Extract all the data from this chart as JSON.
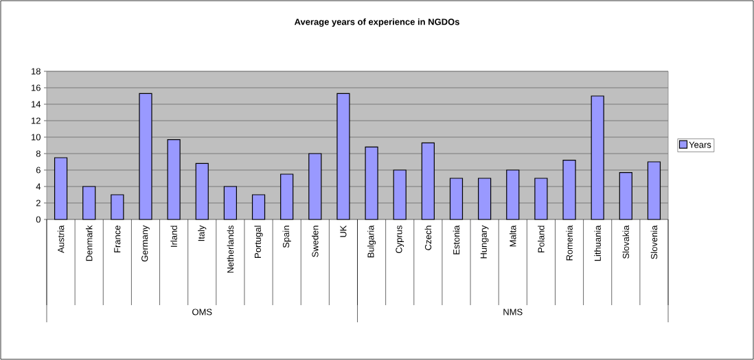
{
  "chart_data": {
    "type": "bar",
    "title": "Average years of experience in NGDOs",
    "categories": [
      "Austria",
      "Denmark",
      "France",
      "Germany",
      "Irland",
      "Italy",
      "Netherlands",
      "Portugal",
      "Spain",
      "Sweden",
      "UK",
      "Bulgaria",
      "Cyprus",
      "Czech",
      "Estonia",
      "Hungary",
      "Malta",
      "Poland",
      "Romenia",
      "Lithuania",
      "Slovakia",
      "Slovenia"
    ],
    "series": [
      {
        "name": "Years",
        "color": "#9999ff",
        "values": [
          7.5,
          4,
          3,
          15.3,
          9.7,
          6.8,
          4,
          3,
          5.5,
          8,
          15.3,
          8.8,
          6,
          9.3,
          5,
          5,
          6,
          5,
          7.2,
          15,
          5.7,
          7
        ]
      }
    ],
    "annotations": [
      "OMS",
      "NMS"
    ],
    "ylim": [
      0,
      18
    ],
    "yticks": [
      0,
      2,
      4,
      6,
      8,
      10,
      12,
      14,
      16,
      18
    ],
    "grid": "y",
    "legend": "right"
  }
}
